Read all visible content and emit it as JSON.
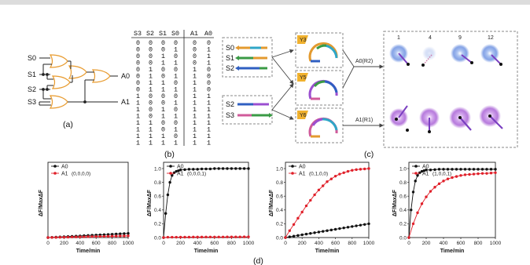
{
  "panel_a": {
    "inputs": [
      "S0",
      "S1",
      "S2",
      "S3"
    ],
    "outputs": [
      "A0",
      "A1"
    ],
    "label": "(a)"
  },
  "panel_b": {
    "headers": [
      "S3",
      "S2",
      "S1",
      "S0",
      "A1",
      "A0"
    ],
    "rows": [
      [
        "0",
        "0",
        "0",
        "0",
        "0",
        "0"
      ],
      [
        "0",
        "0",
        "0",
        "1",
        "0",
        "1"
      ],
      [
        "0",
        "0",
        "1",
        "0",
        "0",
        "1"
      ],
      [
        "0",
        "0",
        "1",
        "1",
        "0",
        "1"
      ],
      [
        "0",
        "1",
        "0",
        "0",
        "1",
        "0"
      ],
      [
        "0",
        "1",
        "0",
        "1",
        "1",
        "0"
      ],
      [
        "0",
        "1",
        "1",
        "0",
        "1",
        "0"
      ],
      [
        "0",
        "1",
        "1",
        "1",
        "1",
        "0"
      ],
      [
        "1",
        "0",
        "0",
        "0",
        "1",
        "1"
      ],
      [
        "1",
        "0",
        "0",
        "1",
        "1",
        "1"
      ],
      [
        "1",
        "0",
        "1",
        "0",
        "1",
        "1"
      ],
      [
        "1",
        "0",
        "1",
        "1",
        "1",
        "1"
      ],
      [
        "1",
        "1",
        "0",
        "0",
        "1",
        "1"
      ],
      [
        "1",
        "1",
        "0",
        "1",
        "1",
        "1"
      ],
      [
        "1",
        "1",
        "1",
        "0",
        "1",
        "1"
      ],
      [
        "1",
        "1",
        "1",
        "1",
        "1",
        "1"
      ]
    ],
    "label": "(b)"
  },
  "panel_c": {
    "strands_top": [
      "S0",
      "S1",
      "S2"
    ],
    "strands_bottom": [
      "S2",
      "S3"
    ],
    "templates": [
      "Y3",
      "Y5",
      "Y6"
    ],
    "out_labels": [
      "A0(R2)",
      "A1(R1)"
    ],
    "columns": [
      "1",
      "4",
      "9",
      "12"
    ],
    "label": "(c)",
    "colors": {
      "a0_glow": "#3a6fd8",
      "a1_glow": "#9b4fd0"
    }
  },
  "panel_d": {
    "label": "(d)",
    "ylabel": "ΔF/MaxΔF",
    "xlabel": "Time/min",
    "legend": [
      "A0",
      "A1"
    ]
  },
  "chart_data": [
    {
      "type": "line",
      "annotation": "(0,0,0,0)",
      "xlim": [
        0,
        1000
      ],
      "ylim": [
        0,
        1.0
      ],
      "xticks": [
        0,
        200,
        400,
        600,
        800,
        1000
      ],
      "yticks": [
        0.0,
        0.2,
        0.4,
        0.6,
        0.8,
        1.0
      ],
      "series": [
        {
          "name": "A0",
          "color": "#111111",
          "x": [
            0,
            50,
            100,
            150,
            200,
            250,
            300,
            350,
            400,
            450,
            500,
            550,
            600,
            650,
            700,
            750,
            800,
            850,
            900,
            950,
            1000
          ],
          "y": [
            0,
            0.003,
            0.006,
            0.009,
            0.012,
            0.015,
            0.018,
            0.021,
            0.024,
            0.027,
            0.03,
            0.033,
            0.036,
            0.039,
            0.042,
            0.045,
            0.048,
            0.051,
            0.054,
            0.057,
            0.06
          ]
        },
        {
          "name": "A1",
          "color": "#e0202a",
          "x": [
            0,
            50,
            100,
            150,
            200,
            250,
            300,
            350,
            400,
            450,
            500,
            550,
            600,
            650,
            700,
            750,
            800,
            850,
            900,
            950,
            1000
          ],
          "y": [
            0,
            0.001,
            0.002,
            0.004,
            0.005,
            0.006,
            0.008,
            0.009,
            0.01,
            0.011,
            0.013,
            0.014,
            0.015,
            0.016,
            0.018,
            0.019,
            0.02,
            0.021,
            0.023,
            0.024,
            0.025
          ]
        }
      ]
    },
    {
      "type": "line",
      "annotation": "(0,0,0,1)",
      "xlim": [
        0,
        1000
      ],
      "ylim": [
        0,
        1.0
      ],
      "xticks": [
        0,
        200,
        400,
        600,
        800,
        1000
      ],
      "yticks": [
        0.0,
        0.2,
        0.4,
        0.6,
        0.8,
        1.0
      ],
      "series": [
        {
          "name": "A0",
          "color": "#111111",
          "x": [
            0,
            25,
            50,
            75,
            100,
            125,
            150,
            175,
            200,
            250,
            300,
            350,
            400,
            450,
            500,
            550,
            600,
            650,
            700,
            750,
            800,
            850,
            900,
            950,
            1000
          ],
          "y": [
            0,
            0.35,
            0.62,
            0.8,
            0.9,
            0.94,
            0.96,
            0.97,
            0.98,
            0.985,
            0.99,
            0.99,
            0.99,
            0.995,
            0.995,
            0.995,
            1.0,
            1.0,
            1.0,
            1.0,
            1.0,
            1.0,
            1.0,
            1.0,
            1.0
          ]
        },
        {
          "name": "A1",
          "color": "#e0202a",
          "x": [
            0,
            50,
            100,
            150,
            200,
            250,
            300,
            350,
            400,
            450,
            500,
            550,
            600,
            650,
            700,
            750,
            800,
            850,
            900,
            950,
            1000
          ],
          "y": [
            0,
            0.005,
            0.005,
            0.005,
            0.006,
            0.006,
            0.006,
            0.007,
            0.007,
            0.007,
            0.008,
            0.008,
            0.008,
            0.008,
            0.008,
            0.009,
            0.009,
            0.009,
            0.009,
            0.01,
            0.01
          ]
        }
      ]
    },
    {
      "type": "line",
      "annotation": "(0,1,0,0)",
      "xlim": [
        0,
        1000
      ],
      "ylim": [
        0,
        1.0
      ],
      "xticks": [
        0,
        200,
        400,
        600,
        800,
        1000
      ],
      "yticks": [
        0.0,
        0.2,
        0.4,
        0.6,
        0.8,
        1.0
      ],
      "series": [
        {
          "name": "A0",
          "color": "#111111",
          "x": [
            0,
            50,
            100,
            150,
            200,
            250,
            300,
            350,
            400,
            450,
            500,
            550,
            600,
            650,
            700,
            750,
            800,
            850,
            900,
            950,
            1000
          ],
          "y": [
            0,
            0.01,
            0.02,
            0.03,
            0.04,
            0.05,
            0.06,
            0.07,
            0.08,
            0.09,
            0.1,
            0.11,
            0.12,
            0.13,
            0.14,
            0.15,
            0.16,
            0.17,
            0.18,
            0.19,
            0.2
          ]
        },
        {
          "name": "A1",
          "color": "#e0202a",
          "x": [
            0,
            50,
            100,
            150,
            200,
            250,
            300,
            350,
            400,
            450,
            500,
            550,
            600,
            650,
            700,
            750,
            800,
            850,
            900,
            950,
            1000
          ],
          "y": [
            0,
            0.1,
            0.19,
            0.28,
            0.37,
            0.46,
            0.54,
            0.62,
            0.69,
            0.75,
            0.81,
            0.85,
            0.89,
            0.92,
            0.94,
            0.96,
            0.975,
            0.985,
            0.99,
            0.995,
            1.0
          ]
        }
      ]
    },
    {
      "type": "line",
      "annotation": "(1,0,0,1)",
      "xlim": [
        0,
        1000
      ],
      "ylim": [
        0,
        1.0
      ],
      "xticks": [
        0,
        200,
        400,
        600,
        800,
        1000
      ],
      "yticks": [
        0.0,
        0.2,
        0.4,
        0.6,
        0.8,
        1.0
      ],
      "series": [
        {
          "name": "A0",
          "color": "#111111",
          "x": [
            0,
            25,
            50,
            75,
            100,
            125,
            150,
            175,
            200,
            250,
            300,
            350,
            400,
            450,
            500,
            550,
            600,
            650,
            700,
            750,
            800,
            850,
            900,
            950,
            1000
          ],
          "y": [
            0,
            0.4,
            0.66,
            0.82,
            0.9,
            0.94,
            0.96,
            0.97,
            0.98,
            0.98,
            0.985,
            0.99,
            0.99,
            0.99,
            0.99,
            0.99,
            0.99,
            0.99,
            0.99,
            0.99,
            0.99,
            0.99,
            0.99,
            0.99,
            0.99
          ]
        },
        {
          "name": "A1",
          "color": "#e0202a",
          "x": [
            0,
            50,
            100,
            150,
            200,
            250,
            300,
            350,
            400,
            450,
            500,
            550,
            600,
            650,
            700,
            750,
            800,
            850,
            900,
            950,
            1000
          ],
          "y": [
            0,
            0.2,
            0.36,
            0.49,
            0.59,
            0.67,
            0.73,
            0.78,
            0.82,
            0.85,
            0.87,
            0.885,
            0.9,
            0.91,
            0.915,
            0.92,
            0.925,
            0.93,
            0.93,
            0.935,
            0.94
          ]
        }
      ]
    }
  ]
}
